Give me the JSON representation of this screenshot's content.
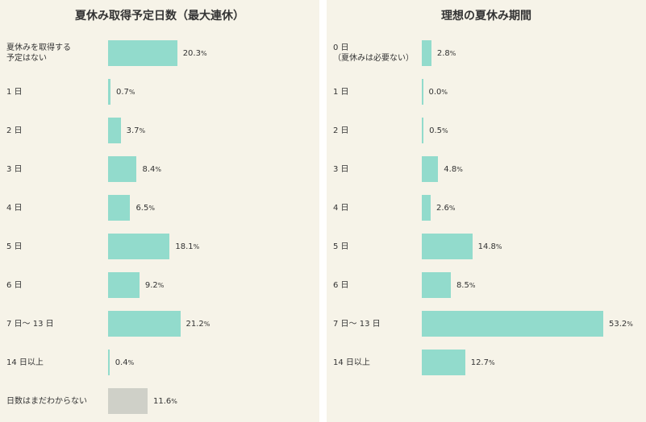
{
  "colors": {
    "bar": "#92dbcc",
    "bar_unknown": "#cfd0c8",
    "panel_bg": "#f6f3e8"
  },
  "chart_data": [
    {
      "type": "bar",
      "orientation": "horizontal",
      "title": "夏休み取得予定日数（最大連休）",
      "unit": "%",
      "categories": [
        "夏休みを取得する\n予定はない",
        "1 日",
        "2 日",
        "3 日",
        "4 日",
        "5 日",
        "6 日",
        "7 日～ 13 日",
        "14 日以上",
        "日数はまだわからない"
      ],
      "values": [
        20.3,
        0.7,
        3.7,
        8.4,
        6.5,
        18.1,
        9.2,
        21.2,
        0.4,
        11.6
      ],
      "value_labels": [
        "20.3",
        "0.7",
        "3.7",
        "8.4",
        "6.5",
        "18.1",
        "9.2",
        "21.2",
        "0.4",
        "11.6"
      ]
    },
    {
      "type": "bar",
      "orientation": "horizontal",
      "title": "理想の夏休み期間",
      "unit": "%",
      "categories": [
        "0 日\n（夏休みは必要ない）",
        "1 日",
        "2 日",
        "3 日",
        "4 日",
        "5 日",
        "6 日",
        "7 日～ 13 日",
        "14 日以上"
      ],
      "values": [
        2.8,
        0.0,
        0.5,
        4.8,
        2.6,
        14.8,
        8.5,
        53.2,
        12.7
      ],
      "value_labels": [
        "2.8",
        "0.0",
        "0.5",
        "4.8",
        "2.6",
        "14.8",
        "8.5",
        "53.2",
        "12.7"
      ]
    }
  ]
}
